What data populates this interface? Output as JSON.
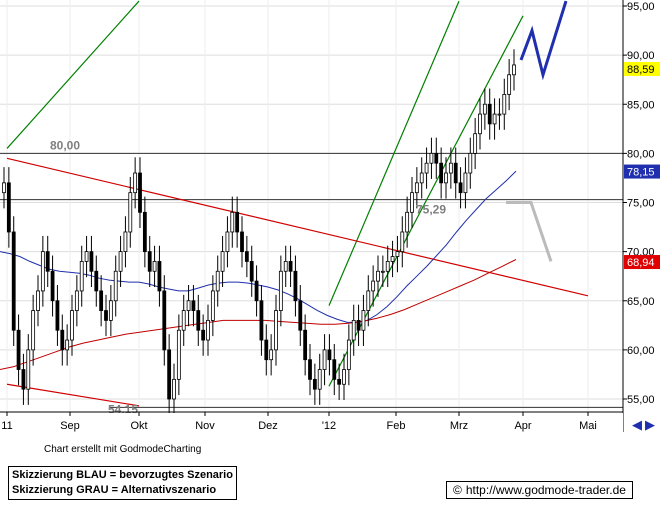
{
  "chart_data": {
    "type": "candlestick",
    "x_ticks": [
      "11",
      "Sep",
      "Okt",
      "Nov",
      "Dez",
      "'12",
      "Feb",
      "Mrz",
      "Apr",
      "Mai"
    ],
    "y_ticks": [
      "95,00",
      "90,00",
      "85,00",
      "80,00",
      "75,00",
      "70,00",
      "65,00",
      "60,00",
      "55,00"
    ],
    "ylim": [
      54,
      95.5
    ],
    "price_tags": [
      {
        "text": "88,59",
        "value": 88.59,
        "bg": "#ffff00",
        "fg": "#000000"
      },
      {
        "text": "78,15",
        "value": 78.15,
        "bg": "#1f2fae",
        "fg": "#ffffff"
      },
      {
        "text": "68,94",
        "value": 68.94,
        "bg": "#e00000",
        "fg": "#ffffff"
      }
    ],
    "level_labels": [
      {
        "text": "80,00",
        "value": 80.0
      },
      {
        "text": "75,29",
        "value": 75.29
      },
      {
        "text": "54,15",
        "value": 54.15
      }
    ],
    "horizontal_lines": [
      80.0,
      75.29,
      54.15
    ],
    "close": [
      77,
      72,
      62,
      58,
      56,
      60,
      64,
      66,
      70,
      68,
      65,
      62,
      60,
      61,
      64,
      66,
      69,
      70,
      68,
      66,
      64,
      63,
      65,
      68,
      70,
      72,
      76,
      78,
      74,
      70,
      68,
      69,
      66,
      60,
      55,
      57,
      62,
      64,
      65,
      64,
      62,
      61,
      63,
      66,
      68,
      70,
      72,
      74,
      72,
      70,
      69,
      67,
      65,
      61,
      59,
      60,
      64,
      68,
      69,
      68,
      65,
      62,
      59,
      57,
      56,
      58,
      60,
      59,
      57,
      56.5,
      58,
      61,
      63,
      62,
      64,
      66,
      67,
      68,
      68,
      69,
      69.5,
      70,
      72,
      74,
      76,
      77,
      78,
      79,
      80,
      79,
      77,
      78,
      79,
      77,
      76,
      78,
      80,
      82,
      84,
      85,
      83,
      84,
      84,
      86,
      88,
      89
    ],
    "moving_averages": [
      {
        "color": "#1f2fae",
        "values": [
          70,
          69.8,
          69.5,
          69,
          68.6,
          68.2,
          68,
          67.9,
          67.8,
          67.6,
          67.3,
          67.1,
          67,
          66.9,
          66.9,
          66.7,
          66.4,
          66.2,
          66,
          66,
          66.3,
          66.6,
          66.8,
          66.9,
          66.9,
          66.8,
          66.6,
          66.4,
          66.1,
          65.7,
          65.2,
          64.6,
          64,
          63.5,
          63.1,
          62.8,
          62.8,
          63,
          63.6,
          64.4,
          65.4,
          66.5,
          67.5,
          68.5,
          69.6,
          70.7,
          72,
          73.2,
          74.3,
          75.4,
          76.3,
          77.2,
          78.2
        ]
      },
      {
        "color": "#c00000",
        "values": [
          58,
          58.3,
          58.8,
          59.3,
          59.8,
          60.3,
          60.7,
          61,
          61.3,
          61.6,
          61.8,
          62,
          62.2,
          62.4,
          62.6,
          62.8,
          63,
          63,
          63,
          63,
          62.9,
          62.8,
          62.7,
          62.6,
          62.6,
          62.7,
          62.9,
          63.2,
          63.6,
          64.1,
          64.7,
          65.3,
          65.9,
          66.5,
          67.1,
          67.8,
          68.5,
          69.2
        ]
      }
    ],
    "trend_lines": [
      {
        "color": "#008000",
        "from": [
          "11",
          80.5
        ],
        "to": [
          "Okt",
          95.5
        ]
      },
      {
        "color": "#008000",
        "from": [
          "'12",
          64.5
        ],
        "to": [
          "Mrz",
          95.5
        ]
      },
      {
        "color": "#008000",
        "from": [
          "'12",
          56.3
        ],
        "to": [
          "Apr",
          94
        ]
      },
      {
        "color": "#d00000",
        "from": [
          "11",
          79.5
        ],
        "to": [
          "Mai",
          65.5
        ]
      },
      {
        "color": "#d00000",
        "from": [
          "11",
          56.5
        ],
        "to": [
          "Okt",
          54.3
        ]
      }
    ],
    "scenario_paths": [
      {
        "name": "blau",
        "color": "#1f2fae",
        "points": [
          [
            89.5,
            0
          ],
          [
            92.5,
            0
          ],
          [
            88,
            0
          ],
          [
            95.5,
            0
          ]
        ]
      },
      {
        "name": "grau",
        "color": "#bbbbbb",
        "points": [
          [
            75,
            0
          ],
          [
            75,
            0
          ],
          [
            69,
            0
          ]
        ]
      }
    ],
    "grid": true,
    "legend": "bottom-left"
  },
  "footer": {
    "credit": "Chart erstellt mit GodmodeCharting",
    "legend_line1": "Skizzierung BLAU = bevorzugtes Szenario",
    "legend_line2": "Skizzierung GRAU = Alternativszenario",
    "url_symbol": "©",
    "url": "http://www.godmode-trader.de"
  }
}
